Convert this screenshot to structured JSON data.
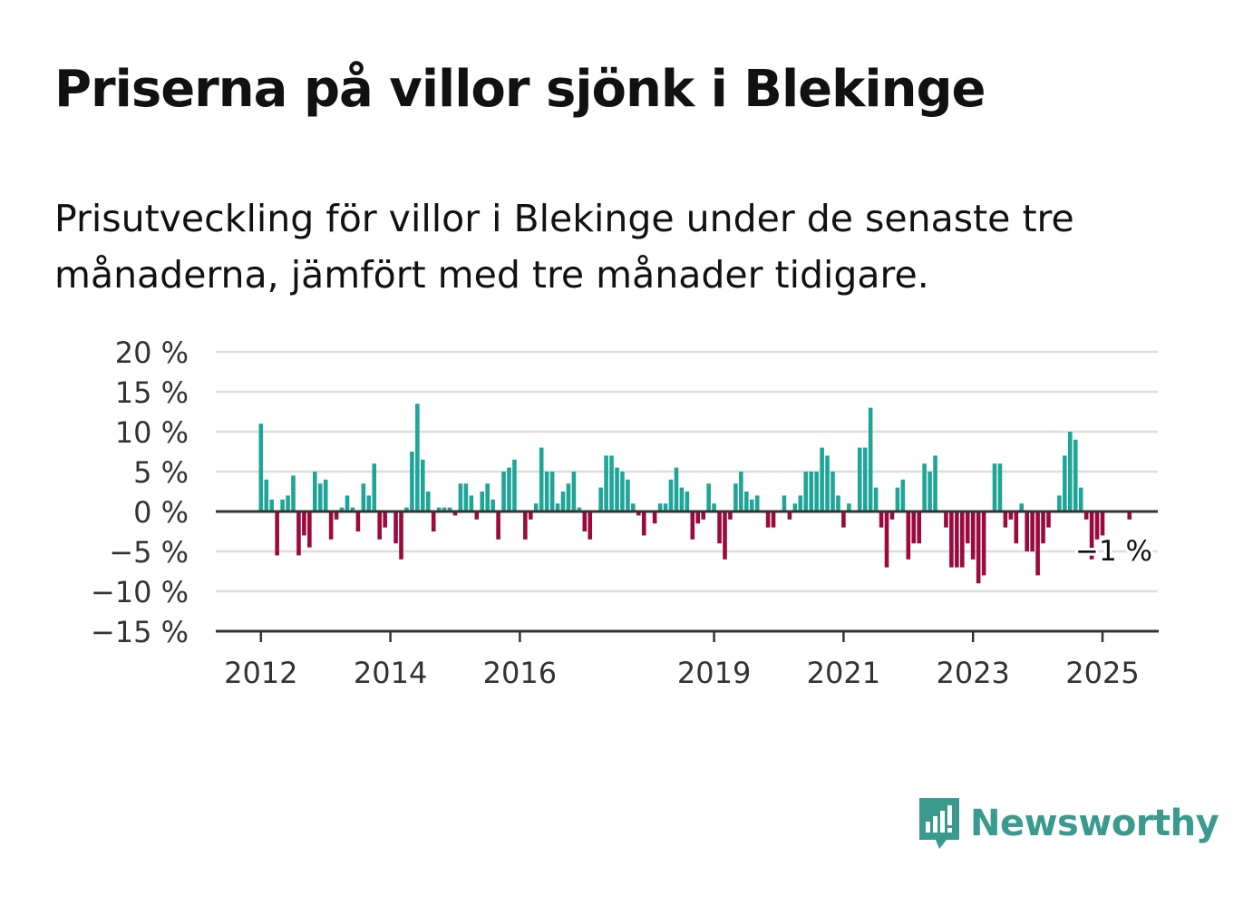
{
  "title": "Priserna på villor sjönk i Blekinge",
  "subtitle": "Prisutveckling för villor i Blekinge under de senaste tre månaderna, jämfört med tre månader tidigare.",
  "brand": "Newsworthy",
  "colors": {
    "positive": "#1fa597",
    "negative": "#9b0a3e",
    "grid": "#dddddd",
    "axis": "#333333",
    "brand": "#3a9a8e"
  },
  "chart_data": {
    "type": "bar",
    "y_ticks": [
      20,
      15,
      10,
      5,
      0,
      -5,
      -10,
      -15
    ],
    "y_tick_labels": [
      "20 %",
      "15 %",
      "10 %",
      "5 %",
      "0 %",
      "−5 %",
      "−10 %",
      "−15 %"
    ],
    "ylim": [
      -15,
      20
    ],
    "x_tick_labels": [
      {
        "label": "2012",
        "year": 2012
      },
      {
        "label": "2014",
        "year": 2014
      },
      {
        "label": "2016",
        "year": 2016
      },
      {
        "label": "2019",
        "year": 2019
      },
      {
        "label": "2021",
        "year": 2021
      },
      {
        "label": "2023",
        "year": 2023
      },
      {
        "label": "2025",
        "year": 2025
      }
    ],
    "x_start_year": 2012,
    "unit": "%",
    "grid": true,
    "last_value_label": "−1 %",
    "series": [
      {
        "values": [
          11,
          4,
          1.5,
          -5.5,
          1.5,
          2,
          4.5,
          -5.5,
          -3,
          -4.5,
          5,
          3.5,
          4,
          -3.5,
          -1,
          0.5,
          2,
          0.5,
          -2.5,
          3.5,
          2,
          6,
          -3.5,
          -2,
          0,
          -4,
          -6,
          0.5,
          7.5,
          13.5,
          6.5,
          2.5,
          -2.5,
          0.5,
          0.5,
          0.5,
          -0.5,
          3.5,
          3.5,
          2,
          -1,
          2.5,
          3.5,
          1.5,
          -3.5,
          5,
          5.5,
          6.5,
          0,
          -3.5,
          -1,
          1,
          8,
          5,
          5,
          1,
          2.5,
          3.5,
          5,
          0.5,
          -2.5,
          -3.5,
          0,
          3,
          7,
          7,
          5.5,
          5,
          4,
          1,
          -0.5,
          -3,
          0,
          -1.5,
          1,
          1,
          4,
          5.5,
          3,
          2.5,
          -3.5,
          -1.5,
          -1,
          3.5,
          1,
          -4,
          -6,
          -1,
          3.5,
          5,
          2.5,
          1.5,
          2,
          0,
          -2,
          -2,
          0,
          2,
          -1,
          1,
          2,
          5,
          5,
          5,
          8,
          7,
          5,
          2,
          -2,
          1,
          0,
          8,
          8,
          13,
          3,
          -2,
          -7,
          -1,
          3,
          4,
          -6,
          -4,
          -4,
          6,
          5,
          7,
          0,
          -2,
          -7,
          -7,
          -7,
          -4,
          -6,
          -9,
          -8,
          0,
          6,
          6,
          -2,
          -1,
          -4,
          1,
          -5,
          -5,
          -8,
          -4,
          -2,
          0,
          2,
          7,
          10,
          9,
          3,
          -1,
          -6,
          -3.5,
          -3,
          0,
          0,
          0,
          0,
          -1
        ]
      }
    ]
  }
}
